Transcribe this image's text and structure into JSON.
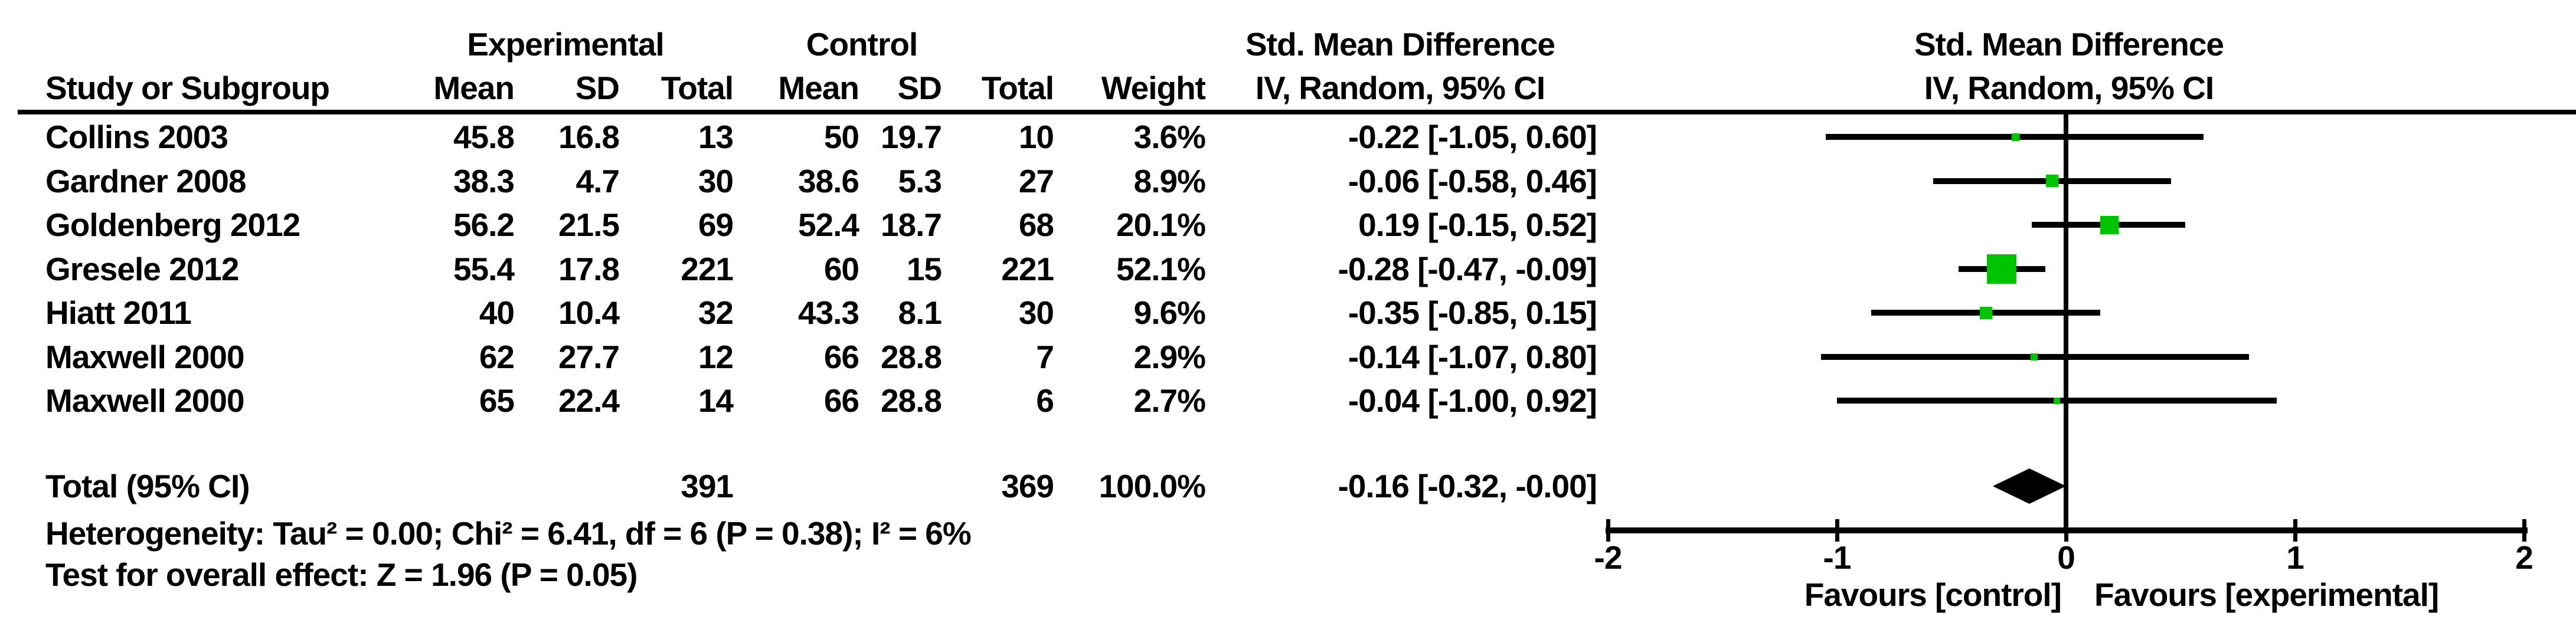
{
  "page": {
    "background": "#ffffff",
    "text_color": "#000000"
  },
  "header": {
    "group_experimental": "Experimental",
    "group_control": "Control",
    "smd_table_line1": "Std. Mean Difference",
    "smd_table_line2": "IV, Random, 95% CI",
    "smd_plot_line1": "Std. Mean Difference",
    "smd_plot_line2": "IV, Random, 95% CI",
    "col_study": "Study or Subgroup",
    "col_exp_mean": "Mean",
    "col_exp_sd": "SD",
    "col_exp_total": "Total",
    "col_ctrl_mean": "Mean",
    "col_ctrl_sd": "SD",
    "col_ctrl_total": "Total",
    "col_weight": "Weight"
  },
  "total_row": {
    "label": "Total (95% CI)",
    "exp_total": "391",
    "ctrl_total": "369",
    "weight": "100.0%",
    "ci_text": "-0.16 [-0.32, -0.00]",
    "smd": -0.16,
    "ci_low": -0.32,
    "ci_high": 0.0
  },
  "footnotes": {
    "heterogeneity": "Heterogeneity: Tau² = 0.00; Chi² = 6.41, df = 6 (P = 0.38); I² = 6%",
    "overall_effect": "Test for overall effect: Z = 1.96 (P = 0.05)"
  },
  "axis": {
    "tick_labels": [
      "-2",
      "-1",
      "0",
      "1",
      "2"
    ],
    "tick_values": [
      -2,
      -1,
      0,
      1,
      2
    ],
    "favours_left": "Favours [control]",
    "favours_right": "Favours [experimental]"
  },
  "colors": {
    "marker_green": "#00c300",
    "line_black": "#000000"
  },
  "chart_data": {
    "type": "forest",
    "effect_measure": "Std. Mean Difference",
    "method": "IV, Random, 95% CI",
    "x_range": [
      -2,
      2
    ],
    "x_ticks": [
      -2,
      -1,
      0,
      1,
      2
    ],
    "null_line": 0,
    "studies": [
      {
        "name": "Collins 2003",
        "exp_mean": "45.8",
        "exp_sd": "16.8",
        "exp_total": "13",
        "ctrl_mean": "50",
        "ctrl_sd": "19.7",
        "ctrl_total": "10",
        "weight": "3.6%",
        "weight_pct": 3.6,
        "ci_text": "-0.22 [-1.05, 0.60]",
        "smd": -0.22,
        "ci_low": -1.05,
        "ci_high": 0.6
      },
      {
        "name": "Gardner 2008",
        "exp_mean": "38.3",
        "exp_sd": "4.7",
        "exp_total": "30",
        "ctrl_mean": "38.6",
        "ctrl_sd": "5.3",
        "ctrl_total": "27",
        "weight": "8.9%",
        "weight_pct": 8.9,
        "ci_text": "-0.06 [-0.58, 0.46]",
        "smd": -0.06,
        "ci_low": -0.58,
        "ci_high": 0.46
      },
      {
        "name": "Goldenberg 2012",
        "exp_mean": "56.2",
        "exp_sd": "21.5",
        "exp_total": "69",
        "ctrl_mean": "52.4",
        "ctrl_sd": "18.7",
        "ctrl_total": "68",
        "weight": "20.1%",
        "weight_pct": 20.1,
        "ci_text": "0.19 [-0.15, 0.52]",
        "smd": 0.19,
        "ci_low": -0.15,
        "ci_high": 0.52
      },
      {
        "name": "Gresele 2012",
        "exp_mean": "55.4",
        "exp_sd": "17.8",
        "exp_total": "221",
        "ctrl_mean": "60",
        "ctrl_sd": "15",
        "ctrl_total": "221",
        "weight": "52.1%",
        "weight_pct": 52.1,
        "ci_text": "-0.28 [-0.47, -0.09]",
        "smd": -0.28,
        "ci_low": -0.47,
        "ci_high": -0.09
      },
      {
        "name": "Hiatt 2011",
        "exp_mean": "40",
        "exp_sd": "10.4",
        "exp_total": "32",
        "ctrl_mean": "43.3",
        "ctrl_sd": "8.1",
        "ctrl_total": "30",
        "weight": "9.6%",
        "weight_pct": 9.6,
        "ci_text": "-0.35 [-0.85, 0.15]",
        "smd": -0.35,
        "ci_low": -0.85,
        "ci_high": 0.15
      },
      {
        "name": "Maxwell 2000",
        "exp_mean": "62",
        "exp_sd": "27.7",
        "exp_total": "12",
        "ctrl_mean": "66",
        "ctrl_sd": "28.8",
        "ctrl_total": "7",
        "weight": "2.9%",
        "weight_pct": 2.9,
        "ci_text": "-0.14 [-1.07, 0.80]",
        "smd": -0.14,
        "ci_low": -1.07,
        "ci_high": 0.8
      },
      {
        "name": "Maxwell 2000",
        "exp_mean": "65",
        "exp_sd": "22.4",
        "exp_total": "14",
        "ctrl_mean": "66",
        "ctrl_sd": "28.8",
        "ctrl_total": "6",
        "weight": "2.7%",
        "weight_pct": 2.7,
        "ci_text": "-0.04 [-1.00, 0.92]",
        "smd": -0.04,
        "ci_low": -1.0,
        "ci_high": 0.92
      }
    ],
    "overall": {
      "label": "Total (95% CI)",
      "smd": -0.16,
      "ci_low": -0.32,
      "ci_high": 0.0,
      "weight_pct": 100.0
    }
  }
}
